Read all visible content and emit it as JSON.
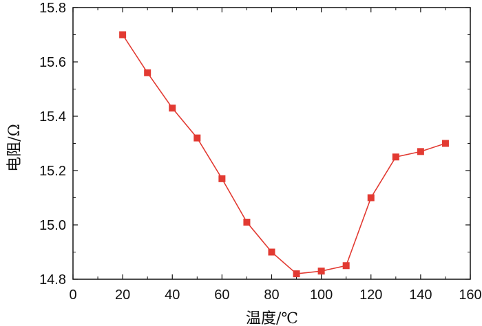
{
  "chart_data": {
    "type": "line",
    "xlabel": "温度/℃",
    "ylabel": "电阻/Ω",
    "xlim": [
      0,
      160
    ],
    "ylim": [
      14.8,
      15.8
    ],
    "x_ticks": [
      0,
      20,
      40,
      60,
      80,
      100,
      120,
      140,
      160
    ],
    "y_ticks": [
      14.8,
      15.0,
      15.2,
      15.4,
      15.6,
      15.8
    ],
    "x_tick_labels": [
      "0",
      "20",
      "40",
      "60",
      "80",
      "100",
      "120",
      "140",
      "160"
    ],
    "y_tick_labels": [
      "14.8",
      "15.0",
      "15.2",
      "15.4",
      "15.6",
      "15.8"
    ],
    "grid": false,
    "legend": "none",
    "marker": "square",
    "color": "#e23a32",
    "series": [
      {
        "x": [
          20,
          30,
          40,
          50,
          60,
          70,
          80,
          90,
          100,
          110,
          120,
          130,
          140,
          150
        ],
        "values": [
          15.7,
          15.56,
          15.43,
          15.32,
          15.17,
          15.01,
          14.9,
          14.82,
          14.83,
          14.85,
          15.1,
          15.25,
          15.27,
          15.3
        ]
      }
    ]
  }
}
